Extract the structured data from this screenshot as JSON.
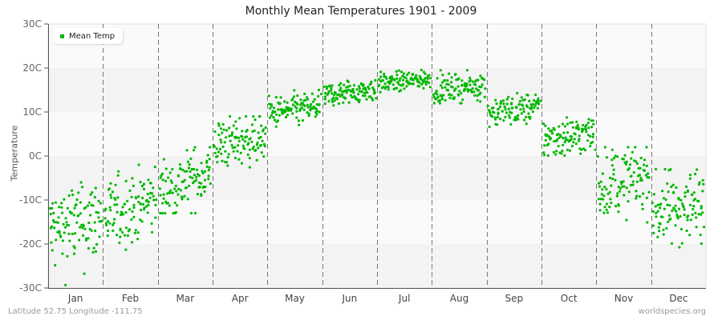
{
  "title": "Monthly Mean Temperatures 1901 - 2009",
  "footer": {
    "location": "Latitude 52.75 Longitude -111.75",
    "source": "worldspecies.org"
  },
  "colors": {
    "point": "#00b800",
    "band_light": "#fafafa",
    "band_dark": "#f3f3f3",
    "grid_dash": "#777777",
    "axis": "#555555"
  },
  "chart_data": {
    "type": "scatter",
    "title": "Monthly Mean Temperatures 1901 - 2009",
    "xlabel": "",
    "ylabel": "Temperature",
    "ylim": [
      -30,
      30
    ],
    "yticks": [
      "30C",
      "20C",
      "10C",
      "0C",
      "-10C",
      "-20C",
      "-30C"
    ],
    "ytick_values": [
      30,
      20,
      10,
      0,
      -10,
      -20,
      -30
    ],
    "categories": [
      "Jan",
      "Feb",
      "Mar",
      "Apr",
      "May",
      "Jun",
      "Jul",
      "Aug",
      "Sep",
      "Oct",
      "Nov",
      "Dec"
    ],
    "legend": [
      {
        "name": "Mean Temp",
        "color": "#00b800"
      }
    ],
    "legend_position": "top-left",
    "grid": "alternating horizontal bands, dashed vertical month separators",
    "years": [
      1901,
      2009
    ],
    "points_per_month": 109,
    "series": [
      {
        "name": "Mean Temp",
        "month_stats": [
          {
            "month": "Jan",
            "mean": -15.5,
            "sd": 5.0,
            "min": -30,
            "max": -6,
            "trend": 3
          },
          {
            "month": "Feb",
            "mean": -12.0,
            "sd": 4.0,
            "min": -22,
            "max": -2,
            "trend": 4
          },
          {
            "month": "Mar",
            "mean": -6.0,
            "sd": 3.5,
            "min": -13,
            "max": 2,
            "trend": 5
          },
          {
            "month": "Apr",
            "mean": 3.5,
            "sd": 2.8,
            "min": -4,
            "max": 9,
            "trend": 2
          },
          {
            "month": "May",
            "mean": 10.5,
            "sd": 1.8,
            "min": 6.5,
            "max": 15,
            "trend": 1.5
          },
          {
            "month": "Jun",
            "mean": 14.5,
            "sd": 1.4,
            "min": 11.5,
            "max": 18,
            "trend": 1.5
          },
          {
            "month": "Jul",
            "mean": 17.0,
            "sd": 1.1,
            "min": 14,
            "max": 20,
            "trend": 1
          },
          {
            "month": "Aug",
            "mean": 15.5,
            "sd": 1.5,
            "min": 12,
            "max": 19.5,
            "trend": 1
          },
          {
            "month": "Sep",
            "mean": 10.5,
            "sd": 1.7,
            "min": 6,
            "max": 15,
            "trend": 1
          },
          {
            "month": "Oct",
            "mean": 4.5,
            "sd": 2.3,
            "min": -2,
            "max": 9,
            "trend": 1
          },
          {
            "month": "Nov",
            "mean": -5.5,
            "sd": 3.8,
            "min": -16,
            "max": 2,
            "trend": 2
          },
          {
            "month": "Dec",
            "mean": -11.5,
            "sd": 4.2,
            "min": -21,
            "max": -3,
            "trend": 2
          }
        ]
      }
    ]
  }
}
